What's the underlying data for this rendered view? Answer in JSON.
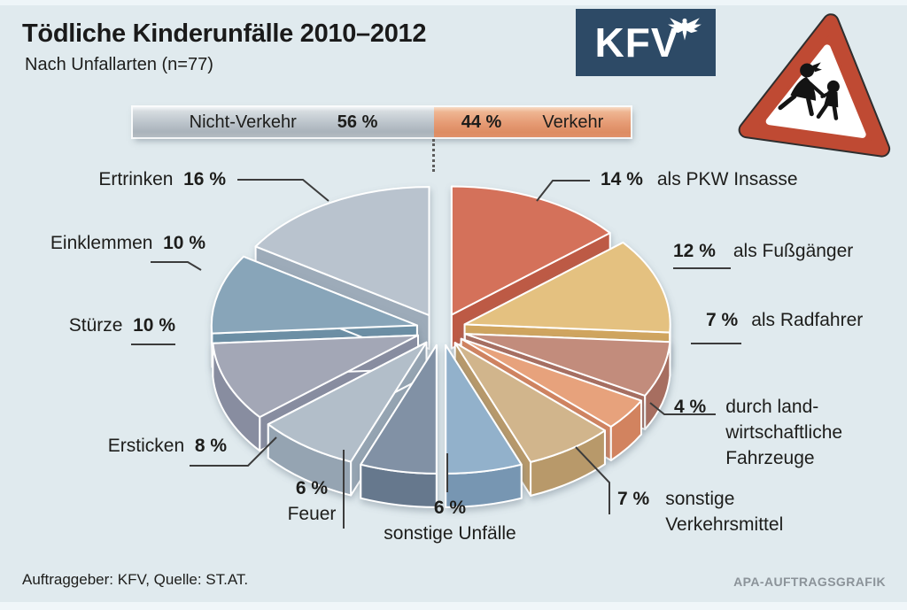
{
  "title": "Tödliche Kinderunfälle 2010–2012",
  "subtitle": "Nach Unfallarten (n=77)",
  "logo": {
    "text": "KFV"
  },
  "split_bar": {
    "left_label": "Nicht-Verkehr",
    "left_value": "56 %",
    "right_value": "44 %",
    "right_label": "Verkehr",
    "left_color": "#bdc5cb",
    "right_color": "#e59a73"
  },
  "chart_data": {
    "type": "pie",
    "title": "Tödliche Kinderunfälle 2010–2012",
    "subtitle": "Nach Unfallarten (n=77)",
    "n": 77,
    "units": "%",
    "groups": [
      {
        "name": "Nicht-Verkehr",
        "value": 56
      },
      {
        "name": "Verkehr",
        "value": 44
      }
    ],
    "slices": [
      {
        "id": "pkw",
        "name": "als PKW Insasse",
        "value": 14,
        "pct_label": "14 %",
        "group": "Verkehr",
        "color": "#d4715a",
        "wall_color": "#bd5a45"
      },
      {
        "id": "fussgaenger",
        "name": "als Fußgänger",
        "value": 12,
        "pct_label": "12 %",
        "group": "Verkehr",
        "color": "#e4c180",
        "wall_color": "#d0a55e"
      },
      {
        "id": "radfahrer",
        "name": "als Radfahrer",
        "value": 7,
        "pct_label": "7 %",
        "group": "Verkehr",
        "color": "#c28c7c",
        "wall_color": "#a76e60"
      },
      {
        "id": "landwirtschaft",
        "name": "durch land-\nwirtschaftliche\nFahrzeuge",
        "value": 4,
        "pct_label": "4 %",
        "group": "Verkehr",
        "color": "#e7a27c",
        "wall_color": "#d2835f"
      },
      {
        "id": "verkehrsmittel",
        "name": "sonstige\nVerkehrsmittel",
        "value": 7,
        "pct_label": "7 %",
        "group": "Verkehr",
        "color": "#d1b58c",
        "wall_color": "#b8996b"
      },
      {
        "id": "sonstige-unfaelle",
        "name": "sonstige Unfälle",
        "value": 6,
        "pct_label": "6 %",
        "group": "Nicht-Verkehr",
        "color": "#92b1cb",
        "wall_color": "#7796b2"
      },
      {
        "id": "feuer",
        "name": "Feuer",
        "value": 6,
        "pct_label": "6 %",
        "group": "Nicht-Verkehr",
        "color": "#8191a5",
        "wall_color": "#66788d"
      },
      {
        "id": "ersticken",
        "name": "Ersticken",
        "value": 8,
        "pct_label": "8 %",
        "group": "Nicht-Verkehr",
        "color": "#b2bec9",
        "wall_color": "#95a4b2"
      },
      {
        "id": "stuerze",
        "name": "Stürze",
        "value": 10,
        "pct_label": "10 %",
        "group": "Nicht-Verkehr",
        "color": "#a3a7b6",
        "wall_color": "#888da0"
      },
      {
        "id": "einklemmen",
        "name": "Einklemmen",
        "value": 10,
        "pct_label": "10 %",
        "group": "Nicht-Verkehr",
        "color": "#88a5b9",
        "wall_color": "#6c8fa5"
      },
      {
        "id": "ertrinken",
        "name": "Ertrinken",
        "value": 16,
        "pct_label": "16 %",
        "group": "Nicht-Verkehr",
        "color": "#b9c3ce",
        "wall_color": "#9dabb9"
      }
    ]
  },
  "footer": {
    "source": "Auftraggeber: KFV, Quelle: ST.AT.",
    "credit": "APA-AUFTRAGSGRAFIK"
  }
}
